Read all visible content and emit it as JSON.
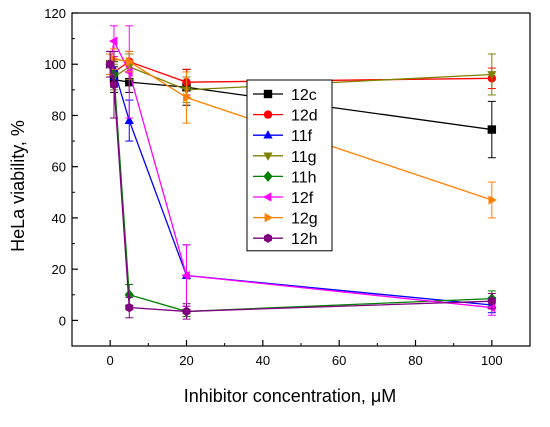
{
  "chart_data": {
    "type": "line",
    "title": "",
    "xlabel": "Inhibitor concentration, μM",
    "ylabel": "HeLa viability, %",
    "xlim": [
      -10,
      110
    ],
    "ylim": [
      -10,
      120
    ],
    "xticks": [
      0,
      20,
      40,
      60,
      80,
      100
    ],
    "yticks": [
      0,
      20,
      40,
      60,
      80,
      100,
      120
    ],
    "grid": false,
    "legend_position": "center",
    "series": [
      {
        "name": "12c",
        "color": "#000000",
        "marker": "square",
        "x": [
          0,
          1,
          5,
          20,
          100
        ],
        "y": [
          100,
          94,
          93,
          91,
          74.5
        ],
        "err": [
          5,
          5,
          4,
          7,
          11
        ]
      },
      {
        "name": "12d",
        "color": "#ff0000",
        "marker": "circle",
        "x": [
          0,
          1,
          5,
          20,
          100
        ],
        "y": [
          100,
          97,
          101,
          93,
          94.5
        ],
        "err": [
          4,
          4,
          4,
          5,
          4
        ]
      },
      {
        "name": "11f",
        "color": "#0000ff",
        "marker": "triangle-up",
        "x": [
          0,
          1,
          5,
          20,
          100
        ],
        "y": [
          100,
          98,
          78,
          17.5,
          6
        ],
        "err": [
          4,
          4,
          8,
          12,
          3
        ]
      },
      {
        "name": "11g",
        "color": "#808000",
        "marker": "triangle-down",
        "x": [
          0,
          1,
          5,
          20,
          100
        ],
        "y": [
          100,
          95,
          99,
          90,
          96
        ],
        "err": [
          4,
          5,
          5,
          5,
          8
        ]
      },
      {
        "name": "11h",
        "color": "#008000",
        "marker": "diamond",
        "x": [
          0,
          1,
          5,
          20,
          100
        ],
        "y": [
          100,
          96,
          10,
          3.5,
          8.5
        ],
        "err": [
          4,
          5,
          4,
          2,
          3
        ]
      },
      {
        "name": "12f",
        "color": "#ff00ff",
        "marker": "triangle-left",
        "x": [
          0,
          1,
          5,
          20,
          100
        ],
        "y": [
          100,
          109,
          97,
          17.5,
          5
        ],
        "err": [
          4,
          6,
          18,
          12,
          3
        ]
      },
      {
        "name": "12g",
        "color": "#ff8000",
        "marker": "triangle-right",
        "x": [
          0,
          1,
          5,
          20,
          100
        ],
        "y": [
          100,
          102,
          101,
          87,
          47
        ],
        "err": [
          4,
          4,
          4,
          10,
          7
        ]
      },
      {
        "name": "12h",
        "color": "#800080",
        "marker": "hexagon",
        "x": [
          0,
          1,
          5,
          20,
          100
        ],
        "y": [
          100,
          92,
          5,
          3.5,
          7.5
        ],
        "err": [
          5,
          13,
          4,
          3,
          3
        ]
      }
    ]
  }
}
